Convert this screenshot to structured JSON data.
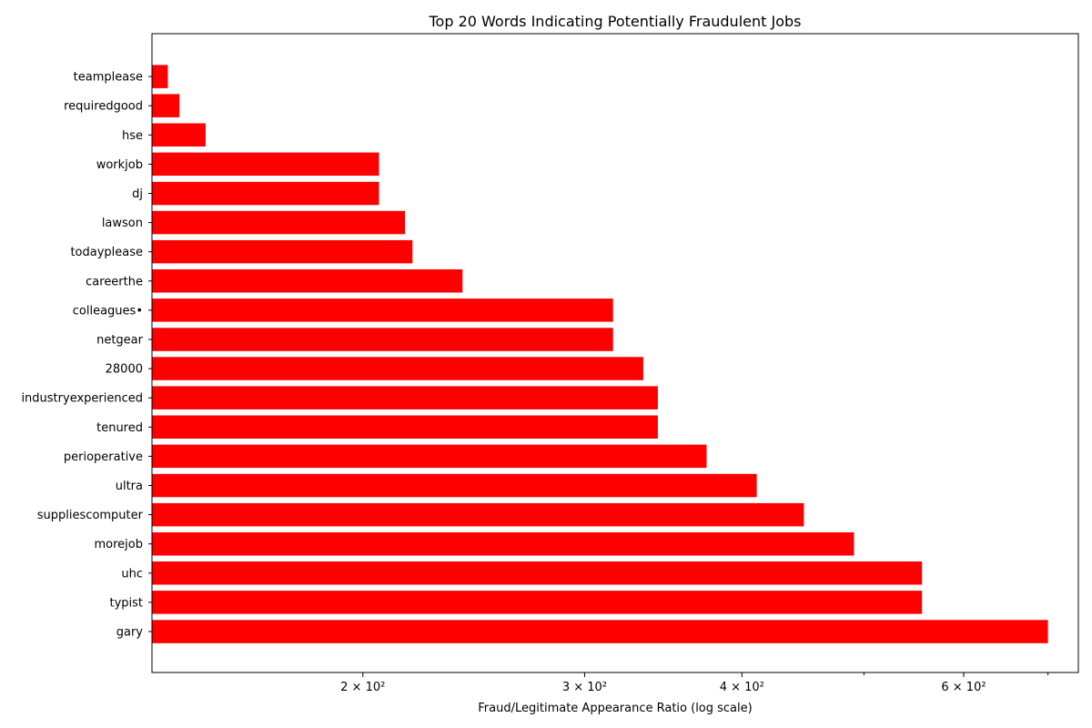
{
  "chart_data": {
    "type": "bar",
    "orientation": "horizontal",
    "title": "Top 20 Words Indicating Potentially Fraudulent Jobs",
    "xlabel": "Fraud/Legitimate Appearance Ratio (log scale)",
    "ylabel": "",
    "xscale": "log",
    "xlim": [
      136,
      740
    ],
    "grid": false,
    "bar_color": "#ff0000",
    "categories": [
      "gary",
      "typist",
      "uhc",
      "morejob",
      "suppliescomputer",
      "ultra",
      "perioperative",
      "tenured",
      "industryexperienced",
      "28000",
      "netgear",
      "colleagues•",
      "careerthe",
      "todayplease",
      "lawson",
      "dj",
      "workjob",
      "hse",
      "requiredgood",
      "teamplease"
    ],
    "values": [
      700,
      556,
      556,
      491,
      448,
      411,
      375,
      343,
      343,
      334,
      316,
      316,
      240,
      219,
      216,
      206,
      206,
      150,
      143,
      140
    ],
    "xticks": [
      {
        "value": 200,
        "label": "2 × 10²"
      },
      {
        "value": 300,
        "label": "3 × 10²"
      },
      {
        "value": 400,
        "label": "4 × 10²"
      },
      {
        "value": 600,
        "label": "6 × 10²"
      }
    ],
    "minor_ticks": [
      500,
      700
    ]
  }
}
